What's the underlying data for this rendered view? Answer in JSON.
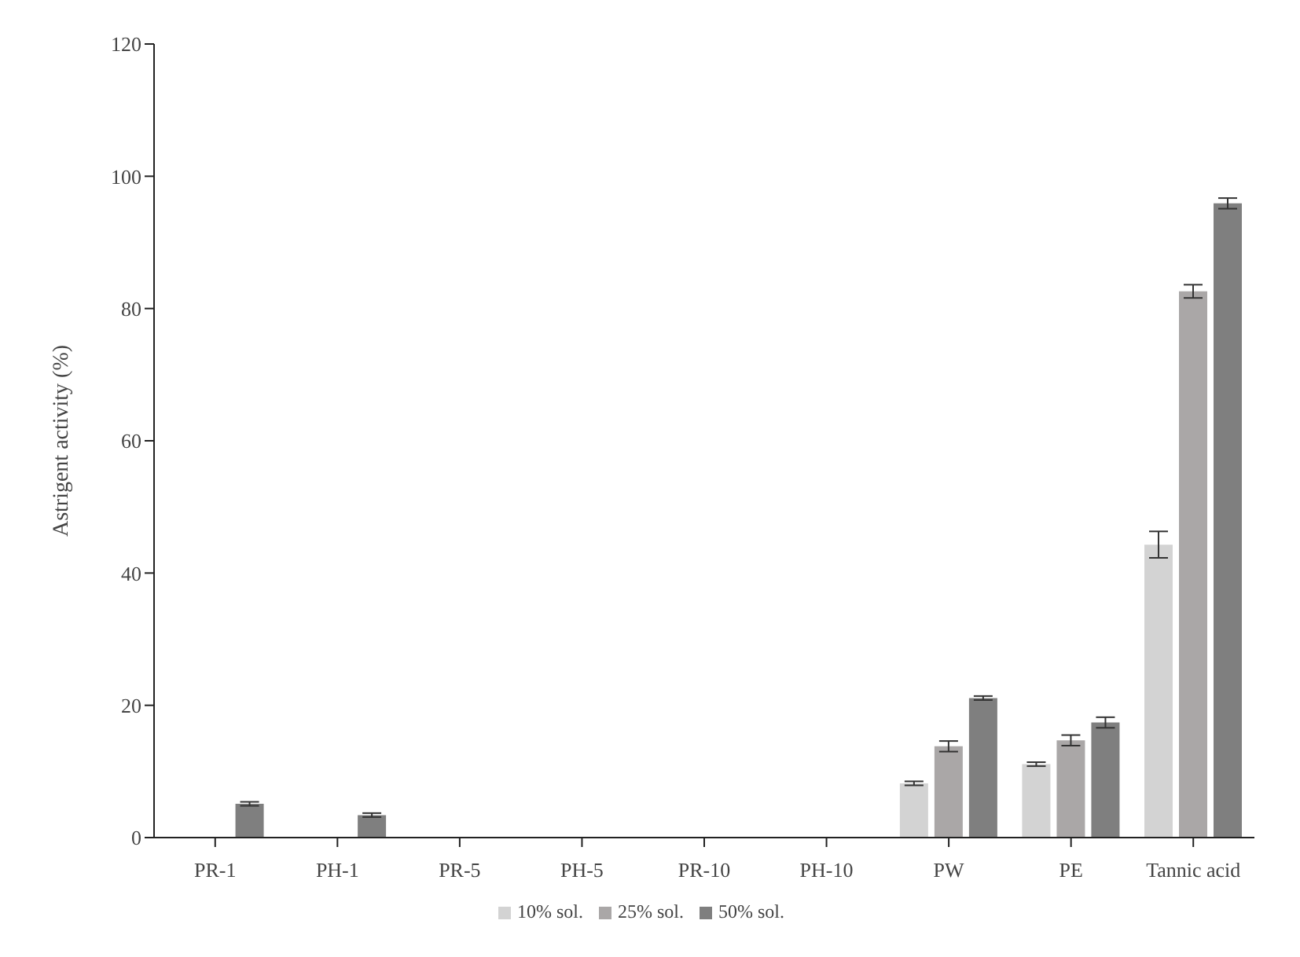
{
  "chart_data": {
    "type": "bar",
    "ylabel": "Astrigent activity (%)",
    "categories": [
      "PR-1",
      "PH-1",
      "PR-5",
      "PH-5",
      "PR-10",
      "PH-10",
      "PW",
      "PE",
      "Tannic acid"
    ],
    "series": [
      {
        "name": "10% sol.",
        "color": "#d3d3d3",
        "values": [
          0,
          0,
          0,
          0,
          0,
          0,
          8.2,
          11.1,
          44.3
        ],
        "errors": [
          null,
          null,
          null,
          null,
          null,
          null,
          0.3,
          0.3,
          2.0
        ]
      },
      {
        "name": "25% sol.",
        "color": "#aaa7a7",
        "values": [
          0,
          0,
          0,
          0,
          0,
          0,
          13.8,
          14.7,
          82.6
        ],
        "errors": [
          null,
          null,
          null,
          null,
          null,
          null,
          0.8,
          0.8,
          1.0
        ]
      },
      {
        "name": "50% sol.",
        "color": "#7f7f7f",
        "values": [
          5.1,
          3.4,
          0,
          0,
          0,
          0,
          21.1,
          17.4,
          95.9
        ],
        "errors": [
          0.3,
          0.3,
          null,
          null,
          null,
          null,
          0.3,
          0.8,
          0.8
        ]
      }
    ],
    "ylim": [
      0,
      120
    ],
    "yticks": [
      0,
      20,
      40,
      60,
      80,
      100,
      120
    ],
    "grid": false,
    "legend": "bottom"
  }
}
